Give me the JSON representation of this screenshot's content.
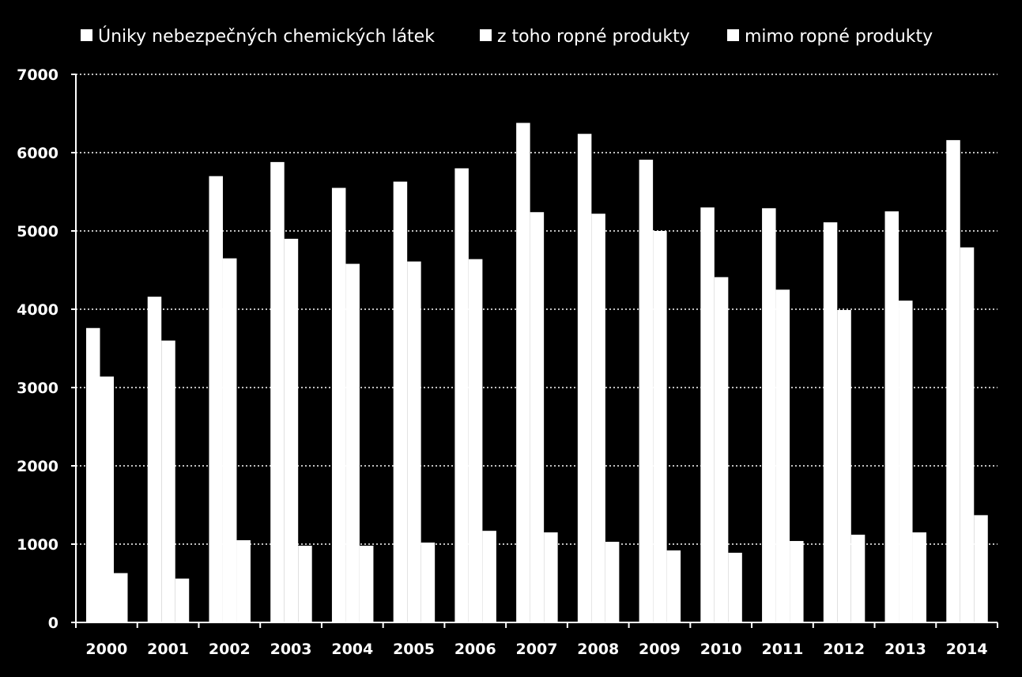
{
  "chart_data": {
    "type": "bar",
    "categories": [
      "2000",
      "2001",
      "2002",
      "2003",
      "2004",
      "2005",
      "2006",
      "2007",
      "2008",
      "2009",
      "2010",
      "2011",
      "2012",
      "2013",
      "2014"
    ],
    "series": [
      {
        "name": "Úniky nebezpečných chemických látek",
        "values": [
          3760,
          4160,
          5700,
          5880,
          5550,
          5630,
          5800,
          6380,
          6240,
          5910,
          5300,
          5290,
          5110,
          5250,
          6160
        ],
        "color": "#ffffff"
      },
      {
        "name": "z toho ropné produkty",
        "values": [
          3140,
          3600,
          4650,
          4900,
          4580,
          4610,
          4640,
          5240,
          5220,
          5000,
          4410,
          4250,
          3990,
          4110,
          4790
        ],
        "color": "#ffffff"
      },
      {
        "name": "mimo ropné produkty",
        "values": [
          630,
          560,
          1050,
          980,
          980,
          1020,
          1170,
          1150,
          1030,
          920,
          890,
          1040,
          1120,
          1150,
          1370
        ],
        "color": "#ffffff"
      }
    ],
    "yticks": [
      0,
      1000,
      2000,
      3000,
      4000,
      5000,
      6000,
      7000
    ],
    "ylim": [
      0,
      7000
    ],
    "grid": true,
    "grid_style": "dotted",
    "legend_position": "top",
    "background": "#000000",
    "axis_color": "#ffffff"
  }
}
